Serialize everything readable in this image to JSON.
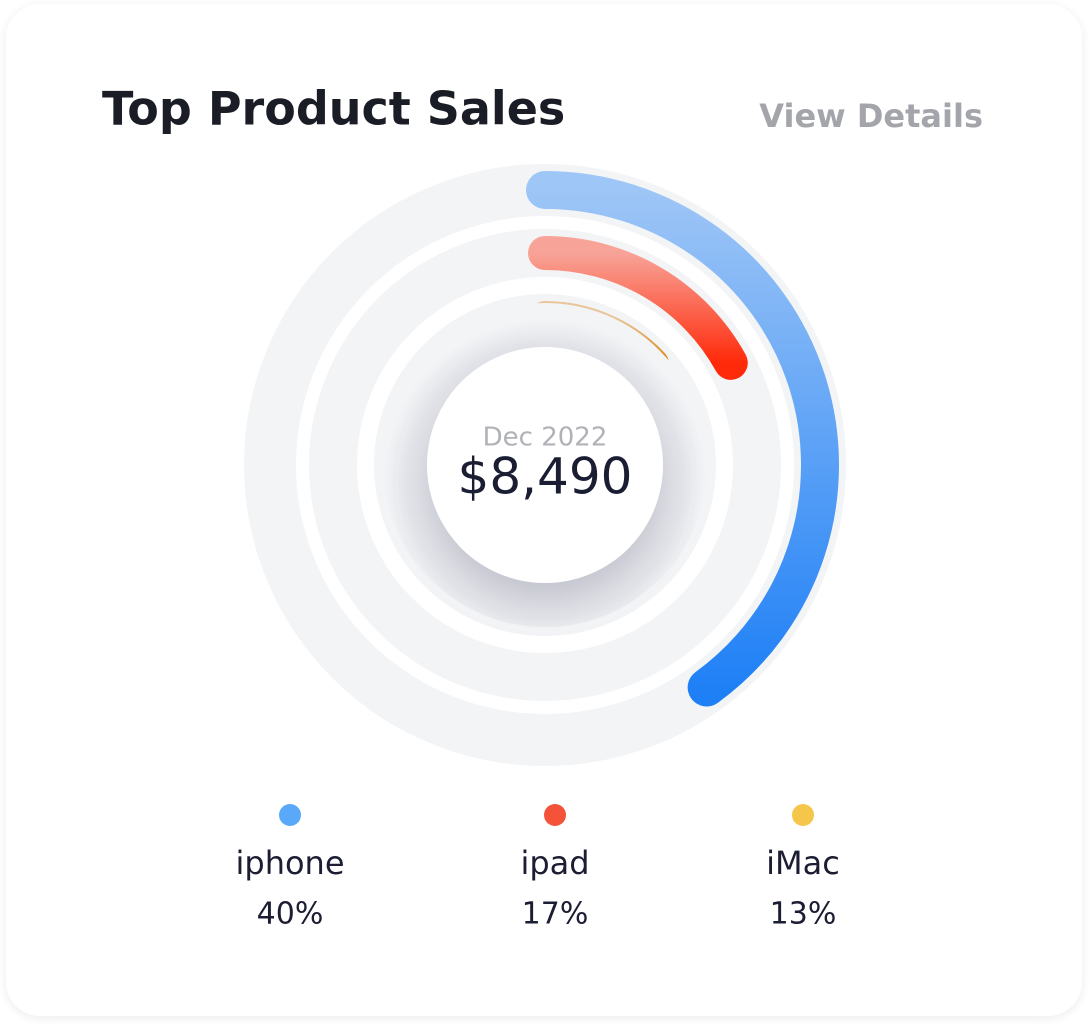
{
  "chart_data": {
    "type": "radial-bar",
    "title": "Top Product Sales",
    "link": "View Details",
    "center_caption": "Dec 2022",
    "center_value": {
      "value": 8490,
      "label": "$8,490"
    },
    "categories": [
      "iphone",
      "ipad",
      "iMac"
    ],
    "values": [
      40,
      17,
      13
    ],
    "value_labels": [
      "40%",
      "17%",
      "13%"
    ],
    "colors": [
      "#1f80f6",
      "#ff2a0a",
      "#d9820f"
    ],
    "dot_colors": [
      "#5aa8fa",
      "#f4533a",
      "#f5c64a"
    ],
    "track_color": "#f3f4f6",
    "rlim": [
      0,
      100
    ]
  }
}
